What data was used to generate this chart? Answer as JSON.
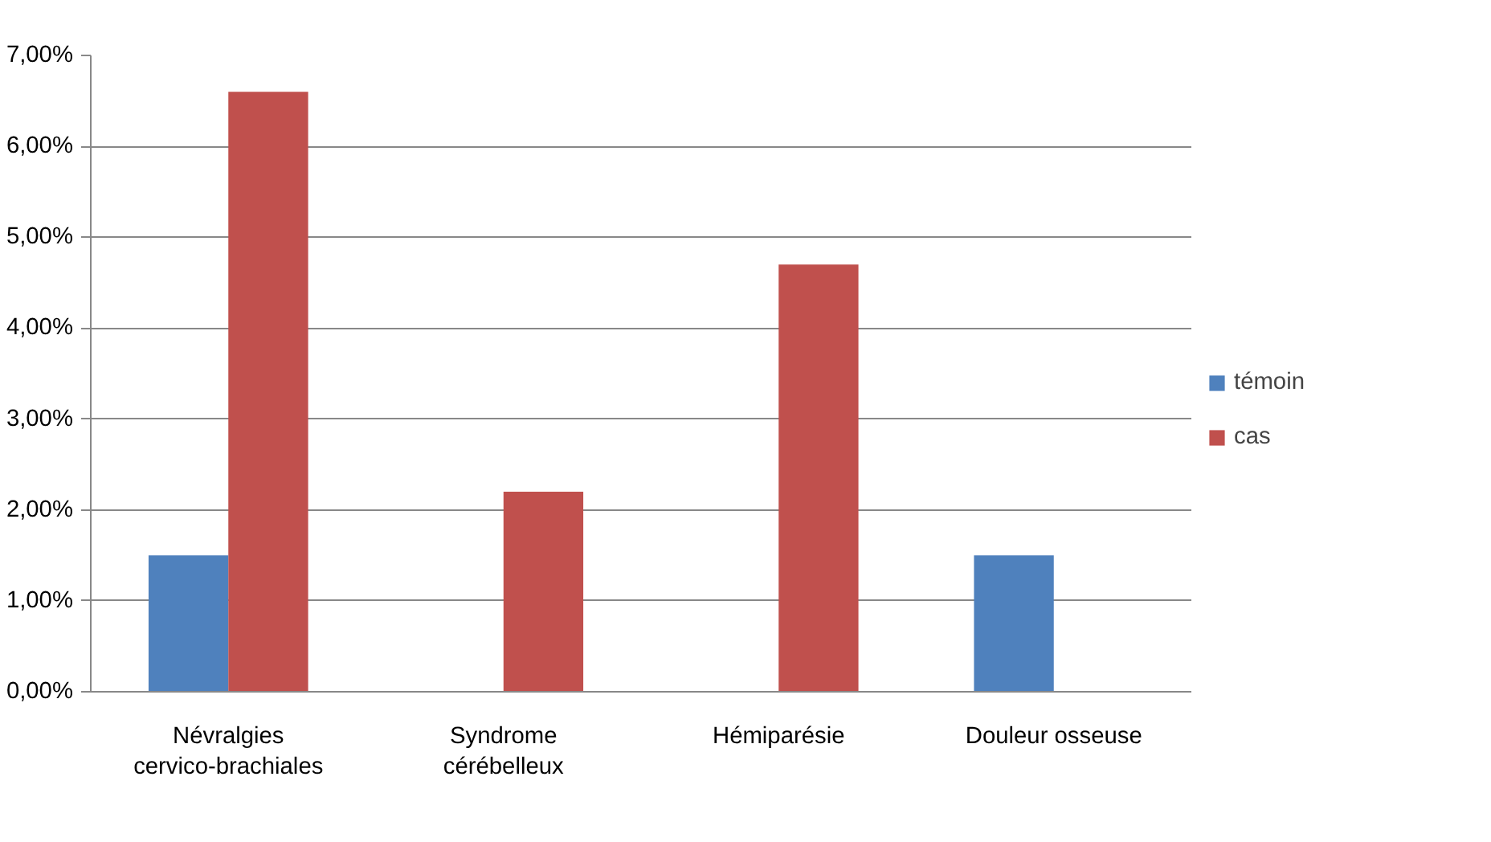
{
  "chart_data": {
    "type": "bar",
    "categories": [
      "Névralgies cervico-brachiales",
      "Syndrome cérébelleux",
      "Hémiparésie",
      "Douleur osseuse"
    ],
    "series": [
      {
        "name": "témoin",
        "color": "#4f81bd",
        "values": [
          1.5,
          0,
          0,
          1.5
        ]
      },
      {
        "name": "cas",
        "color": "#c0504d",
        "values": [
          6.6,
          2.2,
          4.7,
          0
        ]
      }
    ],
    "ylim": [
      0,
      7
    ],
    "yticks": [
      {
        "value": 0,
        "label": "0,00%"
      },
      {
        "value": 1,
        "label": "1,00%"
      },
      {
        "value": 2,
        "label": "2,00%"
      },
      {
        "value": 3,
        "label": "3,00%"
      },
      {
        "value": 4,
        "label": "4,00%"
      },
      {
        "value": 5,
        "label": "5,00%"
      },
      {
        "value": 6,
        "label": "6,00%"
      },
      {
        "value": 7,
        "label": "7,00%"
      }
    ],
    "grid": "y",
    "legend": "right"
  }
}
